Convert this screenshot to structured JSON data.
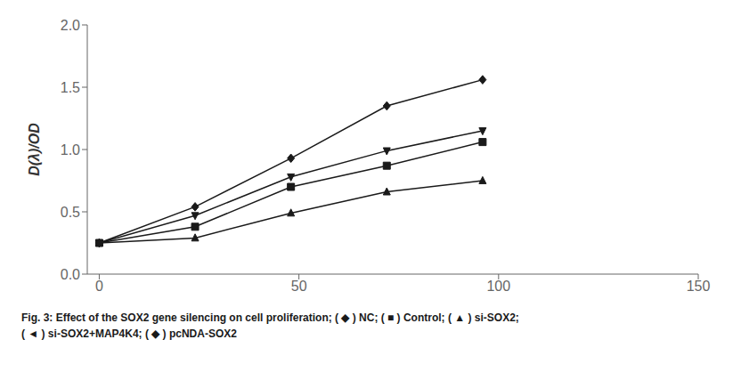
{
  "chart_data": {
    "type": "line",
    "ylabel": "D(λ)/OD",
    "x": [
      0,
      24,
      48,
      72,
      96
    ],
    "series": [
      {
        "values": [
          0.25,
          0.54,
          0.93,
          1.35,
          1.56
        ],
        "marker": "diamond"
      },
      {
        "values": [
          0.25,
          0.47,
          0.78,
          0.99,
          1.15
        ],
        "marker": "triangle-down"
      },
      {
        "values": [
          0.25,
          0.38,
          0.7,
          0.87,
          1.06
        ],
        "marker": "square"
      },
      {
        "values": [
          0.25,
          0.29,
          0.49,
          0.66,
          0.75
        ],
        "marker": "triangle-up"
      }
    ],
    "color": "#1a1a1a",
    "xlim": [
      -3,
      150
    ],
    "ylim": [
      0.0,
      2.0
    ],
    "xticks": [
      0,
      50,
      100,
      150
    ],
    "yticks": [
      {
        "value": 0.0,
        "label": "0.0"
      },
      0.5,
      {
        "value": 1.0,
        "label": "1.0"
      },
      1.5,
      {
        "value": 2.0,
        "label": "2.0"
      }
    ],
    "grid": false,
    "annotations": [
      "Fig. 3: Effect of the SOX2 gene silencing on cell proliferation; ( ◆ ) NC; ( ■ ) Control; ( ▲ ) si-SOX2;",
      "( ◄ ) si-SOX2+MAP4K4; ( ◆ ) pcNDA-SOX2"
    ]
  }
}
